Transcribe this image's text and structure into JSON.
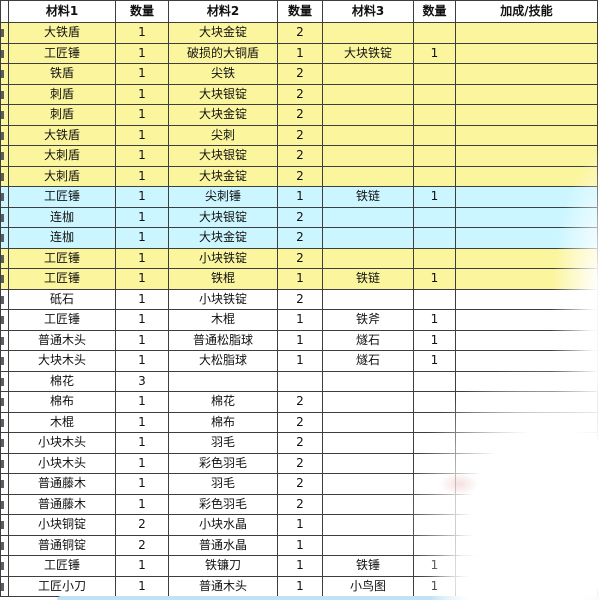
{
  "table": {
    "columns": [
      {
        "label": "材料1"
      },
      {
        "label": "数量"
      },
      {
        "label": "材料2"
      },
      {
        "label": "数量"
      },
      {
        "label": "材料3"
      },
      {
        "label": "数量"
      },
      {
        "label": "加成/技能"
      }
    ],
    "rows": [
      {
        "color": "yellow",
        "m1": "大铁盾",
        "q1": "1",
        "m2": "大块金锭",
        "q2": "2",
        "m3": "",
        "q3": "",
        "bonus": ""
      },
      {
        "color": "yellow",
        "m1": "工匠锤",
        "q1": "1",
        "m2": "破损的大铜盾",
        "q2": "1",
        "m3": "大块铁锭",
        "q3": "1",
        "bonus": ""
      },
      {
        "color": "yellow",
        "m1": "铁盾",
        "q1": "1",
        "m2": "尖铁",
        "q2": "2",
        "m3": "",
        "q3": "",
        "bonus": ""
      },
      {
        "color": "yellow",
        "m1": "刺盾",
        "q1": "1",
        "m2": "大块银锭",
        "q2": "2",
        "m3": "",
        "q3": "",
        "bonus": ""
      },
      {
        "color": "yellow",
        "m1": "刺盾",
        "q1": "1",
        "m2": "大块金锭",
        "q2": "2",
        "m3": "",
        "q3": "",
        "bonus": ""
      },
      {
        "color": "yellow",
        "m1": "大铁盾",
        "q1": "1",
        "m2": "尖刺",
        "q2": "2",
        "m3": "",
        "q3": "",
        "bonus": ""
      },
      {
        "color": "yellow",
        "m1": "大刺盾",
        "q1": "1",
        "m2": "大块银锭",
        "q2": "2",
        "m3": "",
        "q3": "",
        "bonus": ""
      },
      {
        "color": "yellow",
        "m1": "大刺盾",
        "q1": "1",
        "m2": "大块金锭",
        "q2": "2",
        "m3": "",
        "q3": "",
        "bonus": ""
      },
      {
        "color": "blue",
        "m1": "工匠锤",
        "q1": "1",
        "m2": "尖刺锤",
        "q2": "1",
        "m3": "铁链",
        "q3": "1",
        "bonus": ""
      },
      {
        "color": "blue",
        "m1": "连枷",
        "q1": "1",
        "m2": "大块银锭",
        "q2": "2",
        "m3": "",
        "q3": "",
        "bonus": ""
      },
      {
        "color": "blue",
        "m1": "连枷",
        "q1": "1",
        "m2": "大块金锭",
        "q2": "2",
        "m3": "",
        "q3": "",
        "bonus": ""
      },
      {
        "color": "yellow",
        "m1": "工匠锤",
        "q1": "1",
        "m2": "小块铁锭",
        "q2": "2",
        "m3": "",
        "q3": "",
        "bonus": ""
      },
      {
        "color": "yellow",
        "m1": "工匠锤",
        "q1": "1",
        "m2": "铁棍",
        "q2": "1",
        "m3": "铁链",
        "q3": "1",
        "bonus": ""
      },
      {
        "color": "white",
        "m1": "砥石",
        "q1": "1",
        "m2": "小块铁锭",
        "q2": "2",
        "m3": "",
        "q3": "",
        "bonus": ""
      },
      {
        "color": "white",
        "m1": "工匠锤",
        "q1": "1",
        "m2": "木棍",
        "q2": "1",
        "m3": "铁斧",
        "q3": "1",
        "bonus": ""
      },
      {
        "color": "white",
        "m1": "普通木头",
        "q1": "1",
        "m2": "普通松脂球",
        "q2": "1",
        "m3": "燧石",
        "q3": "1",
        "bonus": ""
      },
      {
        "color": "white",
        "m1": "大块木头",
        "q1": "1",
        "m2": "大松脂球",
        "q2": "1",
        "m3": "燧石",
        "q3": "1",
        "bonus": ""
      },
      {
        "color": "white",
        "m1": "棉花",
        "q1": "3",
        "m2": "",
        "q2": "",
        "m3": "",
        "q3": "",
        "bonus": ""
      },
      {
        "color": "white",
        "m1": "棉布",
        "q1": "1",
        "m2": "棉花",
        "q2": "2",
        "m3": "",
        "q3": "",
        "bonus": ""
      },
      {
        "color": "white",
        "m1": "木棍",
        "q1": "1",
        "m2": "棉布",
        "q2": "2",
        "m3": "",
        "q3": "",
        "bonus": ""
      },
      {
        "color": "white",
        "m1": "小块木头",
        "q1": "1",
        "m2": "羽毛",
        "q2": "2",
        "m3": "",
        "q3": "",
        "bonus": ""
      },
      {
        "color": "white",
        "m1": "小块木头",
        "q1": "1",
        "m2": "彩色羽毛",
        "q2": "2",
        "m3": "",
        "q3": "",
        "bonus": ""
      },
      {
        "color": "white",
        "m1": "普通藤木",
        "q1": "1",
        "m2": "羽毛",
        "q2": "2",
        "m3": "",
        "q3": "",
        "bonus": ""
      },
      {
        "color": "white",
        "m1": "普通藤木",
        "q1": "1",
        "m2": "彩色羽毛",
        "q2": "2",
        "m3": "",
        "q3": "",
        "bonus": ""
      },
      {
        "color": "white",
        "m1": "小块铜锭",
        "q1": "2",
        "m2": "小块水晶",
        "q2": "1",
        "m3": "",
        "q3": "",
        "bonus": ""
      },
      {
        "color": "white",
        "m1": "普通铜锭",
        "q1": "2",
        "m2": "普通水晶",
        "q2": "1",
        "m3": "",
        "q3": "",
        "bonus": ""
      },
      {
        "color": "white",
        "m1": "工匠锤",
        "q1": "1",
        "m2": "铁镰刀",
        "q2": "1",
        "m3": "铁锤",
        "q3": "1",
        "bonus": ""
      },
      {
        "color": "white",
        "m1": "工匠小刀",
        "q1": "1",
        "m2": "普通木头",
        "q2": "1",
        "m3": "小鸟图",
        "q3": "1",
        "bonus": ""
      }
    ]
  },
  "colors": {
    "header_green": "#1ed31e",
    "row_yellow": "#fbf59d",
    "row_blue": "#ccf6ff",
    "row_white": "#ffffff",
    "grid_line": "#3e3e3e",
    "bottom_bar_blue": "#bfe3f2"
  }
}
